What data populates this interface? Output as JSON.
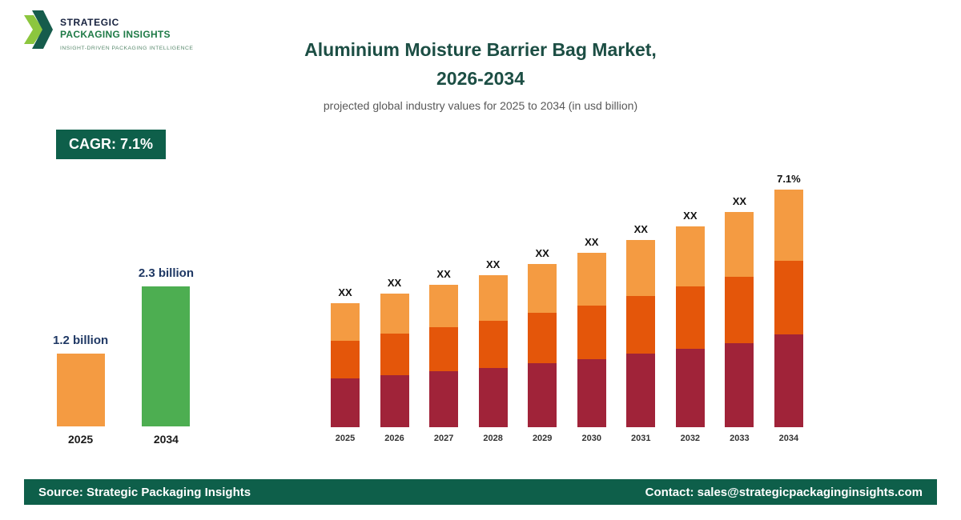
{
  "logo": {
    "line1": "STRATEGIC",
    "line2": "PACKAGING INSIGHTS",
    "tagline": "INSIGHT-DRIVEN PACKAGING INTELLIGENCE"
  },
  "header": {
    "title_line1": "Aluminium Moisture Barrier Bag Market,",
    "title_line2": "2026-2034",
    "subtitle": "projected global industry values for 2025 to 2034 (in usd billion)"
  },
  "cagr_badge": {
    "label": "CAGR: 7.1%"
  },
  "colors": {
    "dark_green": "#0E5F4A",
    "title_teal": "#1C4E44",
    "light_orange": "#F49B42",
    "dark_orange": "#E4560A",
    "crimson": "#A02339",
    "green": "#4DAE51"
  },
  "chart_data": [
    {
      "name": "growth-comparison",
      "type": "bar",
      "categories": [
        "2025",
        "2034"
      ],
      "values": [
        1.2,
        2.3
      ],
      "value_labels": [
        "1.2 billion",
        "2.3 billion"
      ],
      "colors": [
        "#F49B42",
        "#4DAE51"
      ],
      "ylim": [
        0,
        2.3
      ],
      "grid": false,
      "legend": "none"
    },
    {
      "name": "projection-stacked",
      "type": "bar",
      "stacked": true,
      "categories": [
        "2025",
        "2026",
        "2027",
        "2028",
        "2029",
        "2030",
        "2031",
        "2032",
        "2033",
        "2034"
      ],
      "bar_value_labels": [
        "XX",
        "XX",
        "XX",
        "XX",
        "XX",
        "XX",
        "XX",
        "XX",
        "XX",
        "7.1%"
      ],
      "series": [
        {
          "name": "bottom-segment",
          "color": "#A02339",
          "values": [
            0.47,
            0.5,
            0.54,
            0.57,
            0.62,
            0.66,
            0.71,
            0.76,
            0.81,
            0.9
          ]
        },
        {
          "name": "middle-segment",
          "color": "#E4560A",
          "values": [
            0.37,
            0.4,
            0.43,
            0.46,
            0.49,
            0.52,
            0.56,
            0.6,
            0.64,
            0.71
          ]
        },
        {
          "name": "top-segment",
          "color": "#F49B42",
          "values": [
            0.36,
            0.39,
            0.41,
            0.44,
            0.47,
            0.51,
            0.54,
            0.58,
            0.63,
            0.69
          ]
        }
      ],
      "ylim": [
        0,
        2.3
      ],
      "grid": false,
      "legend": "none"
    }
  ],
  "footer": {
    "source": "Source: Strategic Packaging Insights",
    "contact": "Contact: sales@strategicpackaginginsights.com"
  }
}
